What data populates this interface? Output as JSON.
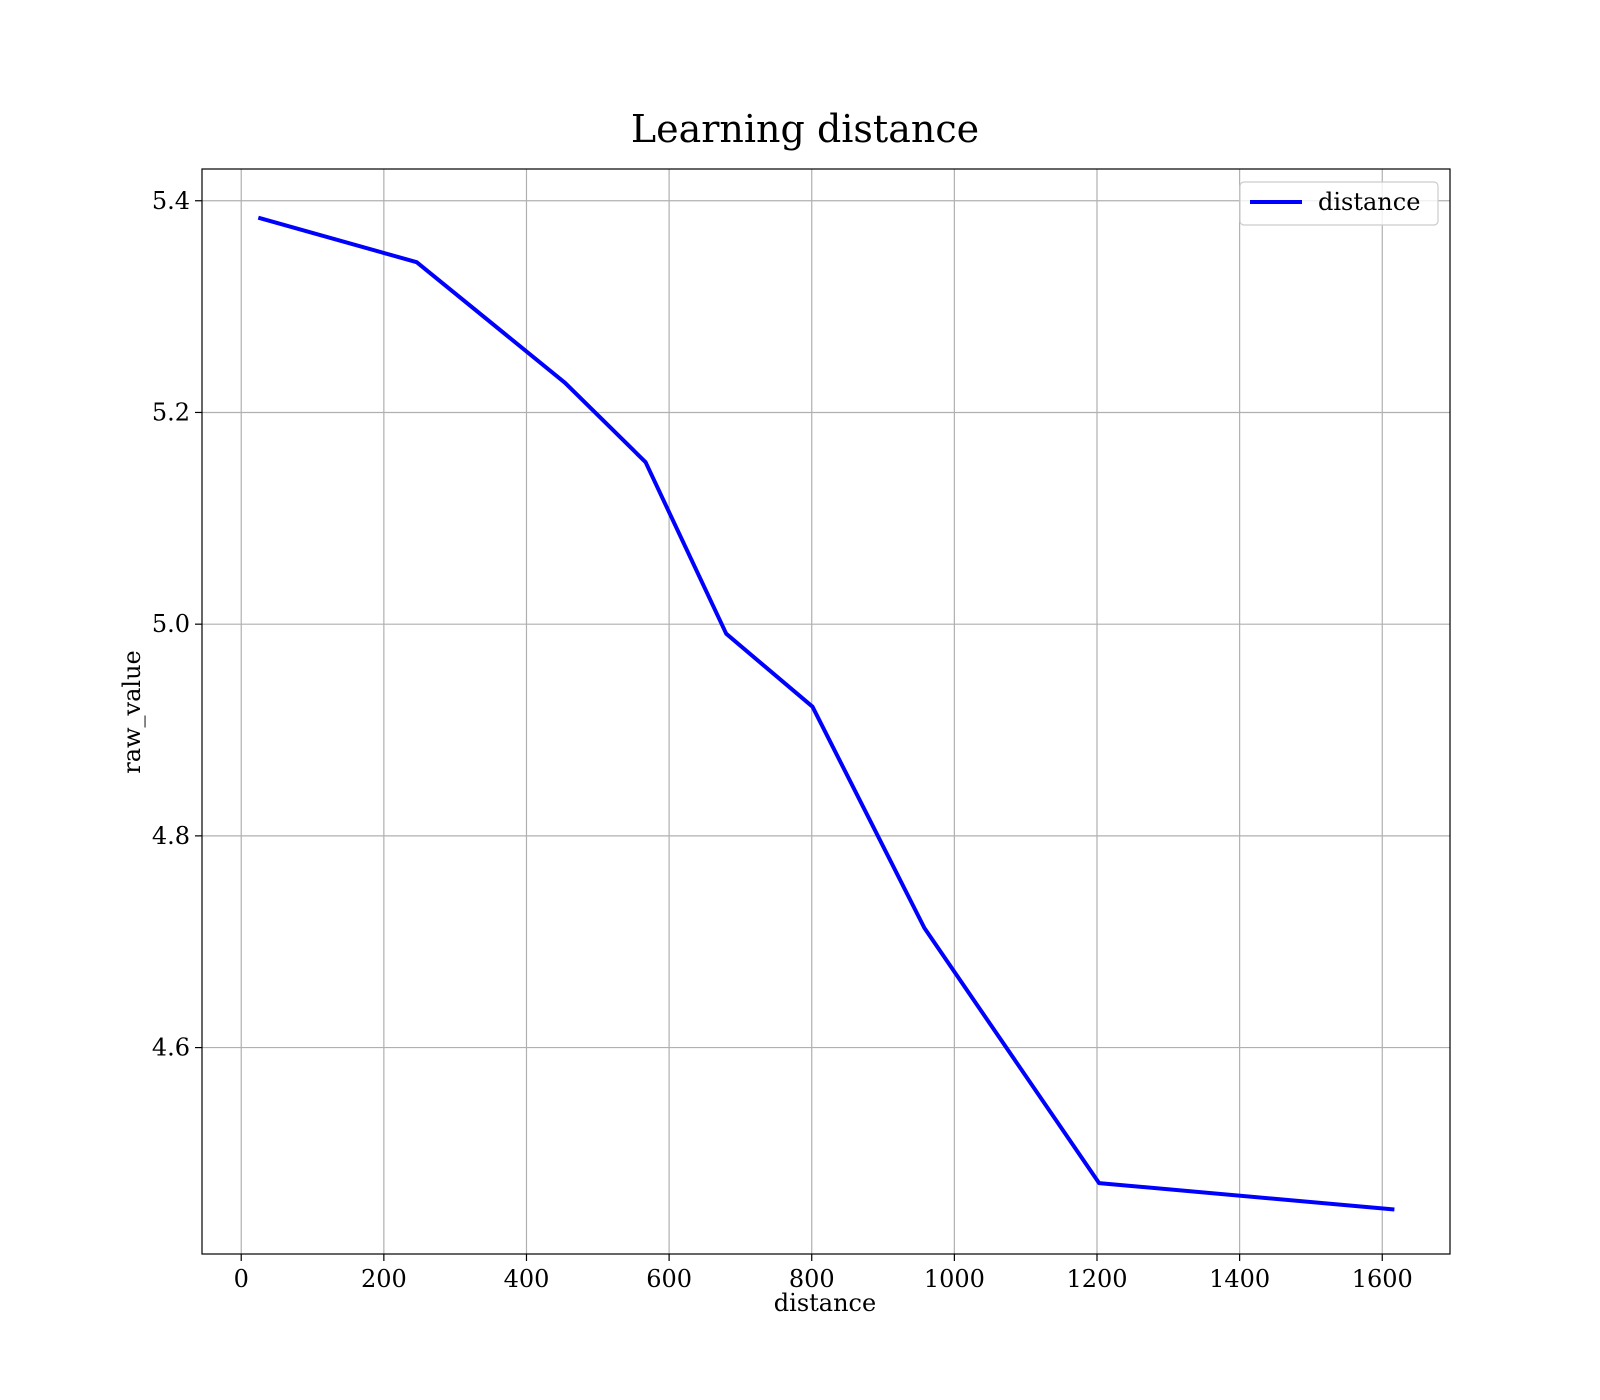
{
  "chart_data": {
    "type": "line",
    "title": "Learning distance",
    "xlabel": "distance",
    "ylabel": "raw_value",
    "xlim": [
      -55,
      1695
    ],
    "ylim": [
      4.405,
      5.43
    ],
    "x_ticks": [
      0,
      200,
      400,
      600,
      800,
      1000,
      1200,
      1400,
      1600
    ],
    "x_tick_labels": [
      "0",
      "200",
      "400",
      "600",
      "800",
      "1000",
      "1200",
      "1400",
      "1600"
    ],
    "y_ticks": [
      4.6,
      4.8,
      5.0,
      5.2,
      5.4
    ],
    "y_tick_labels": [
      "4.6",
      "4.8",
      "5.0",
      "5.2",
      "5.4"
    ],
    "grid": true,
    "legend": {
      "position": "top-right",
      "entries": [
        "distance"
      ]
    },
    "series": [
      {
        "name": "distance",
        "color": "#0000ff",
        "x": [
          24,
          246,
          454,
          567,
          680,
          801,
          958,
          1203,
          1617
        ],
        "y": [
          5.384,
          5.342,
          5.228,
          5.153,
          4.991,
          4.922,
          4.713,
          4.472,
          4.447
        ]
      }
    ]
  }
}
